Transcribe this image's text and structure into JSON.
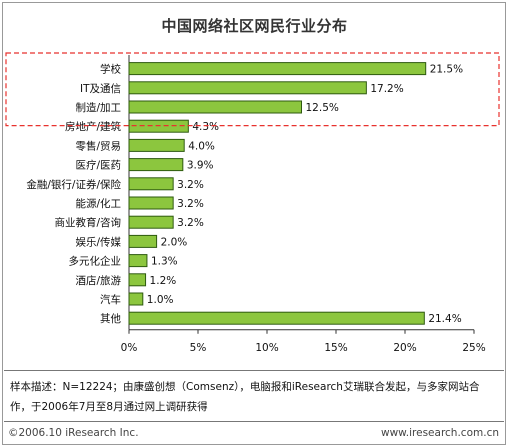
{
  "title": "中国网络社区网民行业分布",
  "chart_data": {
    "type": "bar",
    "orientation": "horizontal",
    "categories": [
      "学校",
      "IT及通信",
      "制造/加工",
      "房地产/建筑",
      "零售/贸易",
      "医疗/医药",
      "金融/银行/证券/保险",
      "能源/化工",
      "商业教育/咨询",
      "娱乐/传媒",
      "多元化企业",
      "酒店/旅游",
      "汽车",
      "其他"
    ],
    "values": [
      21.5,
      17.2,
      12.5,
      4.3,
      4.0,
      3.9,
      3.2,
      3.2,
      3.2,
      2.0,
      1.3,
      1.2,
      1.0,
      21.4
    ],
    "value_labels": [
      "21.5%",
      "17.2%",
      "12.5%",
      "4.3%",
      "4.0%",
      "3.9%",
      "3.2%",
      "3.2%",
      "3.2%",
      "2.0%",
      "1.3%",
      "1.2%",
      "1.0%",
      "21.4%"
    ],
    "xlim": [
      0,
      25
    ],
    "xticks": [
      "0%",
      "5%",
      "10%",
      "15%",
      "20%",
      "25%"
    ],
    "bar_color": "#8cc63e",
    "bar_edge_color": "#2e5a0f",
    "highlight_color": "#e8322e",
    "highlight_count": 3,
    "grid": false
  },
  "note": "样本描述：N=12224；由康盛创想（Comsenz），电脑报和iResearch艾瑞联合发起，与多家网站合作，于2006年7月至8月通过网上调研获得",
  "footer": {
    "left": "©2006.10 iResearch Inc.",
    "right": "www.iresearch.com.cn"
  }
}
